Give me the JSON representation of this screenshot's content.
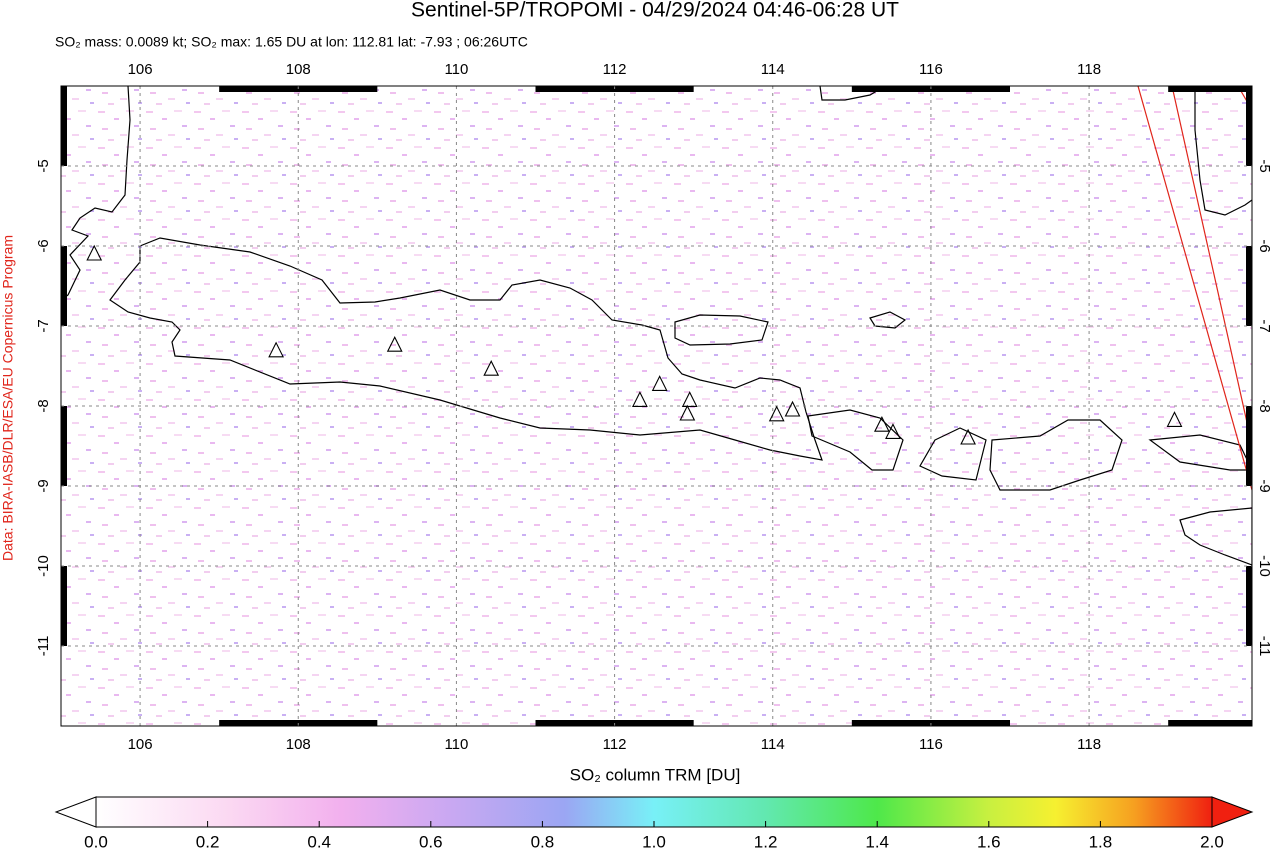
{
  "map": {
    "title": "Sentinel-5P/TROPOMI - 04/29/2024 04:46-06:28 UT",
    "subtitle": "SO₂ mass: 0.0089 kt; SO₂ max: 1.65 DU at lon: 112.81 lat: -7.93 ; 06:26UTC",
    "credit": "Data: BIRA-IASB/DLR/ESA/EU Copernicus Program",
    "lonlim": [
      105,
      120.06
    ],
    "latlim": [
      -12,
      -4
    ],
    "lonticks": [
      106,
      108,
      110,
      112,
      114,
      116,
      118
    ],
    "latticks": [
      -5,
      -6,
      -7,
      -8,
      -9,
      -10,
      -11
    ],
    "volcanoes": [
      {
        "lon": 105.42,
        "lat": -6.1
      },
      {
        "lon": 107.72,
        "lat": -7.31
      },
      {
        "lon": 109.22,
        "lat": -7.24
      },
      {
        "lon": 110.44,
        "lat": -7.54
      },
      {
        "lon": 112.32,
        "lat": -7.93
      },
      {
        "lon": 112.57,
        "lat": -7.73
      },
      {
        "lon": 112.95,
        "lat": -7.93
      },
      {
        "lon": 112.92,
        "lat": -8.1
      },
      {
        "lon": 114.05,
        "lat": -8.11
      },
      {
        "lon": 114.25,
        "lat": -8.05
      },
      {
        "lon": 115.38,
        "lat": -8.24
      },
      {
        "lon": 115.52,
        "lat": -8.33
      },
      {
        "lon": 116.47,
        "lat": -8.4
      },
      {
        "lon": 119.08,
        "lat": -8.18
      }
    ],
    "colorbar": {
      "label": "SO₂ column TRM [DU]",
      "lim": [
        0,
        2
      ],
      "ticks": [
        {
          "value": 0,
          "label": "0.0"
        },
        {
          "value": 0.2,
          "label": "0.2"
        },
        {
          "value": 0.4,
          "label": "0.4"
        },
        {
          "value": 0.6,
          "label": "0.6"
        },
        {
          "value": 0.8,
          "label": "0.8"
        },
        {
          "value": 1,
          "label": "1.0"
        },
        {
          "value": 1.2,
          "label": "1.2"
        },
        {
          "value": 1.4,
          "label": "1.4"
        },
        {
          "value": 1.6,
          "label": "1.6"
        },
        {
          "value": 1.8,
          "label": "1.8"
        },
        {
          "value": 2,
          "label": "2.0"
        }
      ]
    }
  }
}
